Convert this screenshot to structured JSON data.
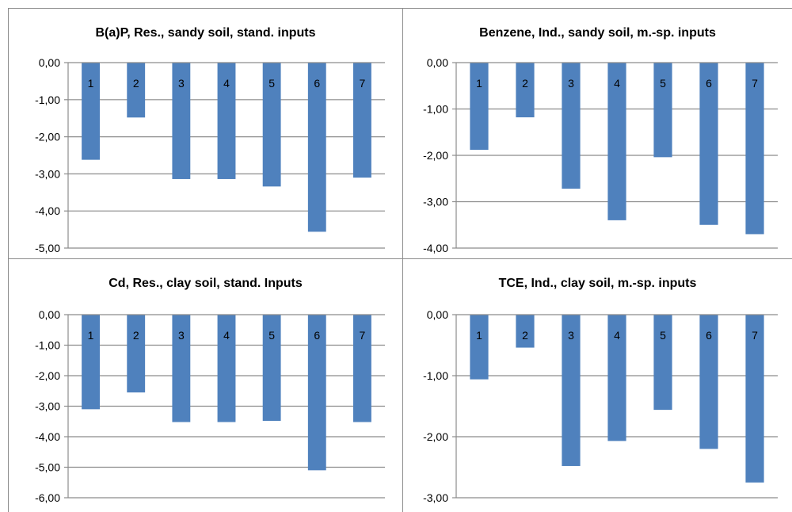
{
  "chart_data": [
    {
      "type": "bar",
      "title": "B(a)P, Res., sandy soil, stand. inputs",
      "categories": [
        "1",
        "2",
        "3",
        "4",
        "5",
        "6",
        "7"
      ],
      "values": [
        -2.62,
        -1.48,
        -3.14,
        -3.14,
        -3.34,
        -4.56,
        -3.1
      ],
      "ylim": [
        -5,
        0
      ],
      "yticks": [
        "0,00",
        "-1,00",
        "-2,00",
        "-3,00",
        "-4,00",
        "-5,00"
      ],
      "xlabel": "",
      "ylabel": "",
      "grid": true,
      "legend": "none",
      "bar_color": "#4f81bd"
    },
    {
      "type": "bar",
      "title": "Benzene, Ind., sandy soil, m.-sp. inputs",
      "categories": [
        "1",
        "2",
        "3",
        "4",
        "5",
        "6",
        "7"
      ],
      "values": [
        -1.88,
        -1.18,
        -2.72,
        -3.4,
        -2.04,
        -3.5,
        -3.7
      ],
      "ylim": [
        -4,
        0
      ],
      "yticks": [
        "0,00",
        "-1,00",
        "-2,00",
        "-3,00",
        "-4,00"
      ],
      "xlabel": "",
      "ylabel": "",
      "grid": true,
      "legend": "none",
      "bar_color": "#4f81bd"
    },
    {
      "type": "bar",
      "title": "Cd, Res., clay soil, stand. Inputs",
      "categories": [
        "1",
        "2",
        "3",
        "4",
        "5",
        "6",
        "7"
      ],
      "values": [
        -3.1,
        -2.55,
        -3.52,
        -3.52,
        -3.48,
        -5.1,
        -3.52
      ],
      "ylim": [
        -6,
        0
      ],
      "yticks": [
        "0,00",
        "-1,00",
        "-2,00",
        "-3,00",
        "-4,00",
        "-5,00",
        "-6,00"
      ],
      "xlabel": "",
      "ylabel": "",
      "grid": true,
      "legend": "none",
      "bar_color": "#4f81bd"
    },
    {
      "type": "bar",
      "title": "TCE, Ind., clay soil, m.-sp. inputs",
      "categories": [
        "1",
        "2",
        "3",
        "4",
        "5",
        "6",
        "7"
      ],
      "values": [
        -1.06,
        -0.54,
        -2.48,
        -2.07,
        -1.56,
        -2.2,
        -2.75
      ],
      "ylim": [
        -3,
        0
      ],
      "yticks": [
        "0,00",
        "-1,00",
        "-2,00",
        "-3,00"
      ],
      "xlabel": "",
      "ylabel": "",
      "grid": true,
      "legend": "none",
      "bar_color": "#4f81bd"
    }
  ]
}
